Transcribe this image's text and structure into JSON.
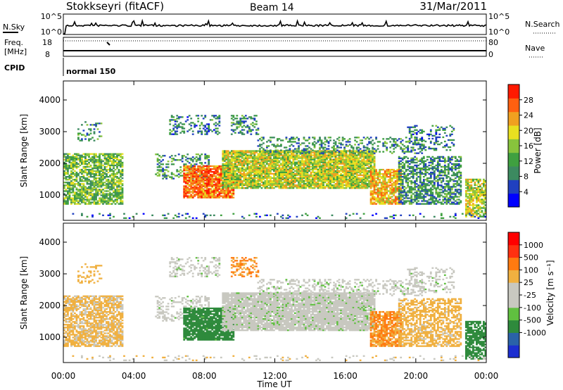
{
  "header": {
    "station": "Stokkseyri (fitACF)",
    "beam": "Beam 14",
    "date": "31/Mar/2011"
  },
  "noise_panel": {
    "left_label": "N.Sky",
    "right_label": "N.Search",
    "left_ticks": [
      "10^5",
      "10^0"
    ],
    "right_ticks": [
      "10^5",
      "10^0"
    ]
  },
  "freq_panel": {
    "left_label_line1": "Freq.",
    "left_label_line2": "[MHz]",
    "right_label": "Nave",
    "left_ticks": [
      "18",
      "8"
    ],
    "right_ticks": [
      "80",
      "0"
    ]
  },
  "cpid_panel": {
    "label": "CPID",
    "program": "normal 150"
  },
  "colors": {
    "power_scale": [
      "#0000ff",
      "#2040c0",
      "#3c8a60",
      "#3fa040",
      "#88c43c",
      "#e8e020",
      "#f0a020",
      "#ff6010",
      "#ff1a00"
    ],
    "velocity_scale": [
      "#1c2ed0",
      "#2a62a8",
      "#2e8a3c",
      "#60c040",
      "#c8c8c0",
      "#c8c8c0",
      "#f0b040",
      "#ff7a10",
      "#ff3010",
      "#ff0000"
    ]
  },
  "chart_data": [
    {
      "type": "heatmap",
      "name": "power",
      "ylabel": "Slant Range [km]",
      "ylim": [
        200,
        4600
      ],
      "yticks": [
        "1000",
        "2000",
        "3000",
        "4000"
      ],
      "colorbar_label": "Power [dB]",
      "colorbar_ticks": [
        "4",
        "8",
        "12",
        "16",
        "20",
        "24",
        "28"
      ],
      "colorbar_range": [
        0,
        32
      ]
    },
    {
      "type": "heatmap",
      "name": "velocity",
      "ylabel": "Slant Range [km]",
      "ylim": [
        200,
        4600
      ],
      "yticks": [
        "1000",
        "2000",
        "3000",
        "4000"
      ],
      "colorbar_label": "Velocity [m s⁻¹]",
      "colorbar_ticks": [
        "1000",
        "500",
        "100",
        "25",
        "-25",
        "-100",
        "-500",
        "-1000"
      ],
      "xlabel": "Time UT",
      "xticks": [
        "00:00",
        "04:00",
        "08:00",
        "12:00",
        "16:00",
        "20:00",
        "00:00"
      ],
      "xlim_hours": [
        0,
        24
      ]
    }
  ]
}
